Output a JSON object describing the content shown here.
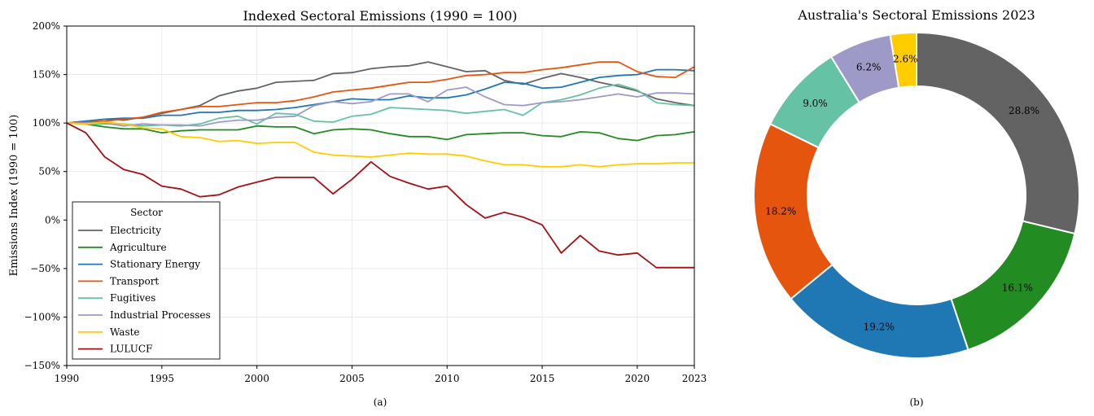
{
  "chart_data": [
    {
      "type": "line",
      "title": "Indexed Sectoral Emissions (1990 = 100)",
      "xlabel": "",
      "ylabel": "Emissions Index (1990 = 100)",
      "caption": "(a)",
      "xlim": [
        1990,
        2023
      ],
      "ylim": [
        -150,
        200
      ],
      "xticks": [
        1990,
        1995,
        2000,
        2005,
        2010,
        2015,
        2020,
        2023
      ],
      "xtick_labels": [
        "1990",
        "1995",
        "2000",
        "2005",
        "2010",
        "2015",
        "2020",
        "2023"
      ],
      "yticks": [
        -150,
        -100,
        -50,
        0,
        50,
        100,
        150,
        200
      ],
      "ytick_labels": [
        "−150%",
        "−100%",
        "−50%",
        "0%",
        "50%",
        "100%",
        "150%",
        "200%"
      ],
      "grid": true,
      "legend": {
        "title": "Sector",
        "placement": "lower-left"
      },
      "x": [
        1990,
        1991,
        1992,
        1993,
        1994,
        1995,
        1996,
        1997,
        1998,
        1999,
        2000,
        2001,
        2002,
        2003,
        2004,
        2005,
        2006,
        2007,
        2008,
        2009,
        2010,
        2011,
        2012,
        2013,
        2014,
        2015,
        2016,
        2017,
        2018,
        2019,
        2020,
        2021,
        2022,
        2023
      ],
      "series": [
        {
          "name": "Electricity",
          "color": "#636363",
          "values": [
            100,
            102,
            104,
            103,
            106,
            110,
            114,
            118,
            128,
            133,
            136,
            142,
            143,
            144,
            151,
            152,
            156,
            158,
            159,
            163,
            158,
            153,
            154,
            144,
            140,
            146,
            151,
            147,
            142,
            138,
            133,
            125,
            121,
            118
          ]
        },
        {
          "name": "Agriculture",
          "color": "#228b22",
          "values": [
            100,
            99,
            96,
            94,
            94,
            90,
            92,
            93,
            93,
            93,
            97,
            96,
            96,
            89,
            93,
            94,
            93,
            89,
            86,
            86,
            83,
            88,
            89,
            90,
            90,
            87,
            86,
            91,
            90,
            84,
            82,
            87,
            88,
            91
          ]
        },
        {
          "name": "Stationary Energy",
          "color": "#1f77b4",
          "values": [
            100,
            102,
            104,
            105,
            105,
            108,
            108,
            111,
            111,
            113,
            113,
            114,
            116,
            119,
            122,
            125,
            124,
            124,
            128,
            126,
            126,
            129,
            135,
            142,
            141,
            136,
            137,
            142,
            147,
            149,
            150,
            155,
            155,
            154
          ]
        },
        {
          "name": "Transport",
          "color": "#e6550d",
          "values": [
            100,
            101,
            102,
            104,
            106,
            111,
            114,
            117,
            117,
            119,
            121,
            121,
            123,
            127,
            132,
            134,
            136,
            139,
            142,
            142,
            145,
            149,
            150,
            152,
            152,
            155,
            157,
            160,
            163,
            163,
            153,
            148,
            147,
            158
          ]
        },
        {
          "name": "Fugitives",
          "color": "#66c2a5",
          "values": [
            100,
            99,
            99,
            99,
            97,
            98,
            97,
            99,
            105,
            107,
            99,
            110,
            109,
            102,
            101,
            107,
            109,
            116,
            115,
            114,
            113,
            110,
            112,
            114,
            108,
            121,
            124,
            129,
            136,
            140,
            134,
            121,
            119,
            118
          ]
        },
        {
          "name": "Industrial Processes",
          "color": "#9e9ac8",
          "values": [
            100,
            100,
            100,
            97,
            99,
            98,
            98,
            97,
            101,
            103,
            103,
            106,
            107,
            118,
            122,
            120,
            122,
            130,
            130,
            122,
            134,
            137,
            127,
            119,
            118,
            121,
            122,
            124,
            127,
            130,
            127,
            131,
            131,
            130
          ]
        },
        {
          "name": "Waste",
          "color": "#ffcc00",
          "values": [
            100,
            99,
            101,
            99,
            95,
            94,
            86,
            85,
            81,
            82,
            79,
            80,
            80,
            70,
            67,
            66,
            65,
            67,
            69,
            68,
            68,
            66,
            61,
            57,
            57,
            55,
            55,
            57,
            55,
            57,
            58,
            58,
            59,
            59
          ]
        },
        {
          "name": "LULUCF",
          "color": "#a50f15",
          "values": [
            100,
            90,
            65,
            52,
            47,
            35,
            32,
            24,
            26,
            34,
            39,
            44,
            44,
            44,
            27,
            42,
            60,
            45,
            38,
            32,
            35,
            16,
            2,
            8,
            3,
            -5,
            -34,
            -16,
            -32,
            -36,
            -34,
            -49,
            -49,
            -49
          ]
        }
      ]
    },
    {
      "type": "pie",
      "title": "Australia's Sectoral Emissions 2023",
      "caption": "(b)",
      "donut": true,
      "start": "top, counter-clockwise",
      "slices": [
        {
          "label": "2.6%",
          "value": 2.6,
          "color": "#ffcc00"
        },
        {
          "label": "6.2%",
          "value": 6.2,
          "color": "#9e9ac8"
        },
        {
          "label": "9.0%",
          "value": 9.0,
          "color": "#66c2a5"
        },
        {
          "label": "18.2%",
          "value": 18.2,
          "color": "#e6550d"
        },
        {
          "label": "19.2%",
          "value": 19.2,
          "color": "#1f77b4"
        },
        {
          "label": "16.1%",
          "value": 16.1,
          "color": "#228b22"
        },
        {
          "label": "28.8%",
          "value": 28.8,
          "color": "#636363"
        }
      ]
    }
  ]
}
